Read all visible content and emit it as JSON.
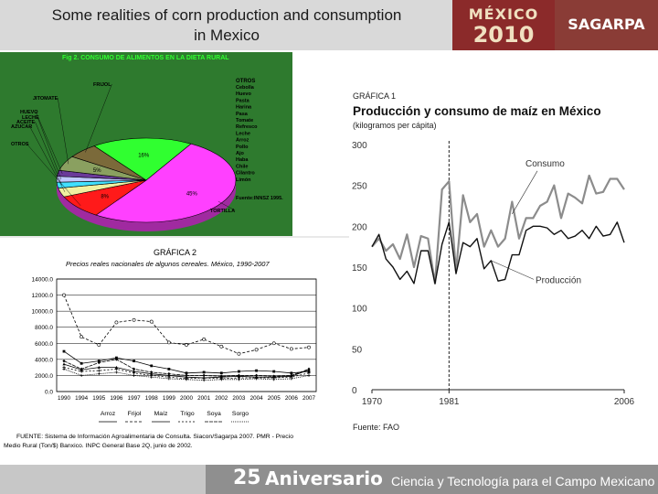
{
  "slide": {
    "title_line1": "Some realities of corn production and consumption",
    "title_line2": "in Mexico",
    "logo_mexico_word": "MÉXICO",
    "logo_mexico_year": "2010",
    "logo_sagarpa": "SAGARPA",
    "footer_number": "25",
    "footer_word": "Aniversario",
    "footer_tagline": "Ciencia y Tecnología para el Campo Mexicano"
  },
  "colors": {
    "pie_background": "#2e7a2e",
    "frijol": "#7b6a3a",
    "jitomate": "#8aa060",
    "huevo": "#6a3a9a",
    "leche": "#c0c8ff",
    "aceite": "#40e0ff",
    "azucar": "#f0f0a0",
    "otros": "#ff1a1a",
    "otros_list": "#ff1a1a",
    "tortilla": "#ff40ff",
    "hortalizas": "#30ff30",
    "consumo_line": "#8c8c8c",
    "produccion_line": "#111111"
  },
  "chart_data": [
    {
      "type": "pie",
      "title": "Fig 2. CONSUMO DE ALIMENTOS EN LA DIETA RURAL",
      "source": "Fuente:INNSZ 1995.",
      "slices": [
        {
          "label": "TORTILLA",
          "pct_text": "45%",
          "value": 45
        },
        {
          "label": "OTROS",
          "pct_text": "8%",
          "value": 8
        },
        {
          "label": "AZUCAR",
          "pct_text": "",
          "value": 3
        },
        {
          "label": "ACEITE",
          "pct_text": "",
          "value": 2
        },
        {
          "label": "LECHE",
          "pct_text": "",
          "value": 2
        },
        {
          "label": "HUEVO",
          "pct_text": "",
          "value": 2
        },
        {
          "label": "JITOMATE",
          "pct_text": "5%",
          "value": 5
        },
        {
          "label": "FRIJOL",
          "pct_text": "",
          "value": 5
        },
        {
          "label": "",
          "pct_text": "16%",
          "value": 16
        }
      ],
      "legend_title": "OTROS",
      "legend_items": [
        "Cebolla",
        "Huevo",
        "Pasta",
        "Harina",
        "Pasa",
        "Tomate",
        "Refresco",
        "Leche",
        "Arroz",
        "Pollo",
        "Ajo",
        "Haba",
        "Chile",
        "Cilantro",
        "Limón"
      ]
    },
    {
      "type": "line",
      "figure_label": "GRÁFICA 2",
      "title": "Precios reales nacionales de algunos cereales. México, 1990-2007",
      "x": [
        "1990",
        "1994",
        "1995",
        "1996",
        "1997",
        "1998",
        "1999",
        "2000",
        "2001",
        "2002",
        "2003",
        "2004",
        "2005",
        "2006",
        "2007"
      ],
      "y_ticks": [
        "14000.0",
        "12000.0",
        "10000.0",
        "8000.0",
        "6000.0",
        "4000.0",
        "2000.0",
        "0.0"
      ],
      "ylim": [
        0,
        14000
      ],
      "series": [
        {
          "name": "Arroz",
          "values": [
            5000,
            3500,
            3800,
            4200,
            3800,
            3200,
            2800,
            2300,
            2400,
            2300,
            2500,
            2600,
            2500,
            2300,
            2500
          ]
        },
        {
          "name": "Frijol",
          "values": [
            12000,
            6800,
            5800,
            8600,
            8900,
            8700,
            6100,
            5800,
            6500,
            5600,
            4700,
            5200,
            6000,
            5300,
            5500
          ]
        },
        {
          "name": "Maíz",
          "values": [
            3400,
            2700,
            3000,
            3000,
            2500,
            2200,
            2000,
            1800,
            1700,
            1800,
            1900,
            1800,
            1800,
            1900,
            2700
          ]
        },
        {
          "name": "Trigo",
          "values": [
            3000,
            2500,
            2600,
            2800,
            2300,
            2000,
            1800,
            1600,
            1700,
            1600,
            1700,
            1700,
            1700,
            1800,
            2300
          ]
        },
        {
          "name": "Soya",
          "values": [
            3800,
            2800,
            3600,
            4000,
            2800,
            2400,
            2200,
            2000,
            2000,
            1900,
            2000,
            2000,
            1900,
            2000,
            2800
          ]
        },
        {
          "name": "Sorgo",
          "values": [
            2800,
            2000,
            2200,
            2400,
            2000,
            1800,
            1600,
            1500,
            1400,
            1500,
            1500,
            1600,
            1500,
            1600,
            2000
          ]
        }
      ],
      "source": "FUENTE: Sistema de Información Agroalimentaria de Consulta. Siacon/Sagarpa 2007. PMR - Precio Medio Rural (Ton/$) Banxico. INPC General Base 2Q, junio de 2002."
    },
    {
      "type": "line",
      "figure_label": "GRÁFICA 1",
      "title": "Producción y consumo de maíz en México",
      "subtitle": "(kilogramos per cápita)",
      "x_tick_labels": [
        "1970",
        "1981",
        "2006"
      ],
      "xlim": [
        1970,
        2006
      ],
      "y_ticks": [
        "300",
        "250",
        "200",
        "150",
        "100",
        "50",
        "0"
      ],
      "ylim": [
        0,
        300
      ],
      "marker_year": 1981,
      "source": "Fuente: FAO",
      "x": [
        1970,
        1971,
        1972,
        1973,
        1974,
        1975,
        1976,
        1977,
        1978,
        1979,
        1980,
        1981,
        1982,
        1983,
        1984,
        1985,
        1986,
        1987,
        1988,
        1989,
        1990,
        1991,
        1992,
        1993,
        1994,
        1995,
        1996,
        1997,
        1998,
        1999,
        2000,
        2001,
        2002,
        2003,
        2004,
        2005,
        2006
      ],
      "series": [
        {
          "name": "Consumo",
          "values": [
            175,
            185,
            170,
            178,
            160,
            190,
            150,
            188,
            185,
            130,
            245,
            255,
            145,
            238,
            205,
            215,
            175,
            195,
            175,
            185,
            230,
            185,
            210,
            210,
            225,
            230,
            250,
            210,
            240,
            235,
            228,
            262,
            240,
            242,
            258,
            258,
            245
          ]
        },
        {
          "name": "Producción",
          "values": [
            175,
            190,
            160,
            150,
            135,
            145,
            130,
            170,
            170,
            130,
            178,
            205,
            142,
            180,
            175,
            185,
            148,
            158,
            133,
            135,
            165,
            165,
            195,
            200,
            200,
            198,
            190,
            195,
            185,
            188,
            195,
            185,
            200,
            188,
            190,
            205,
            180
          ]
        }
      ]
    }
  ]
}
